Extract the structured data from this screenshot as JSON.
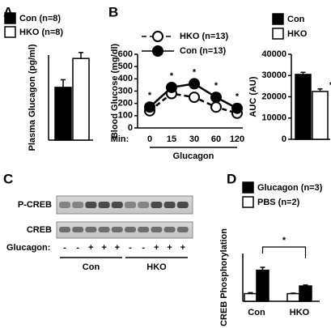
{
  "chart_data": [
    {
      "type": "bar",
      "panel": "A",
      "ylabel": "Plasma Glucagon (pg/ml)",
      "ylim": [
        0,
        100
      ],
      "series": [
        {
          "name": "Con (n=8)",
          "color": "#000000",
          "values": [
            62
          ],
          "errors": [
            9
          ]
        },
        {
          "name": "HKO (n=8)",
          "color": "#ffffff",
          "values": [
            96
          ],
          "errors": [
            7
          ]
        }
      ]
    },
    {
      "type": "line",
      "panel": "B",
      "ylabel": "Blood Glucose (mg/dl)",
      "xlabel": "Glucagon",
      "x_prefix": "Min:",
      "categories": [
        "0",
        "15",
        "30",
        "60",
        "120"
      ],
      "ylim": [
        0,
        600
      ],
      "yticks": [
        0,
        100,
        200,
        300,
        400,
        500,
        600
      ],
      "series": [
        {
          "name": "HKO (n=13)",
          "color": "#ffffff",
          "line_style": "dashed",
          "values": [
            140,
            280,
            250,
            170,
            120
          ]
        },
        {
          "name": "Con (n=13)",
          "color": "#000000",
          "line_style": "solid",
          "values": [
            170,
            330,
            360,
            250,
            160
          ]
        }
      ],
      "star_labels": [
        "*",
        "*",
        "*",
        "*",
        "*"
      ]
    },
    {
      "type": "bar",
      "ylabel": "AUC (AU)",
      "ylim": [
        0,
        40000
      ],
      "yticks": [
        0,
        10000,
        20000,
        30000,
        40000
      ],
      "series": [
        {
          "name": "Con",
          "color": "#000000",
          "values": [
            30500
          ],
          "errors": [
            1000
          ]
        },
        {
          "name": "HKO",
          "color": "#ffffff",
          "values": [
            22500
          ],
          "errors": [
            1200
          ]
        }
      ],
      "star_labels": [
        null,
        "*"
      ]
    },
    {
      "type": "bar",
      "panel": "D",
      "ylabel": "CREB Phosphorylation",
      "ylim": [
        0,
        1
      ],
      "categories": [
        "Con",
        "HKO"
      ],
      "series": [
        {
          "name": "Glucagon (n=3)",
          "color": "#000000",
          "values": [
            0.65,
            0.32
          ],
          "errors": [
            0.06,
            0.02
          ]
        },
        {
          "name": "PBS (n=2)",
          "color": "#ffffff",
          "values": [
            0.16,
            0.16
          ],
          "errors": [
            0.02,
            0.01
          ]
        }
      ],
      "bracket_label": "*"
    }
  ],
  "blot": {
    "panel": "C",
    "rows": [
      "P-CREB",
      "CREB"
    ],
    "treatment_label": "Glucagon:",
    "lanes": [
      "-",
      "-",
      "+",
      "+",
      "+",
      "-",
      "-",
      "+",
      "+",
      "+"
    ],
    "groups": [
      "Con",
      "HKO"
    ]
  }
}
